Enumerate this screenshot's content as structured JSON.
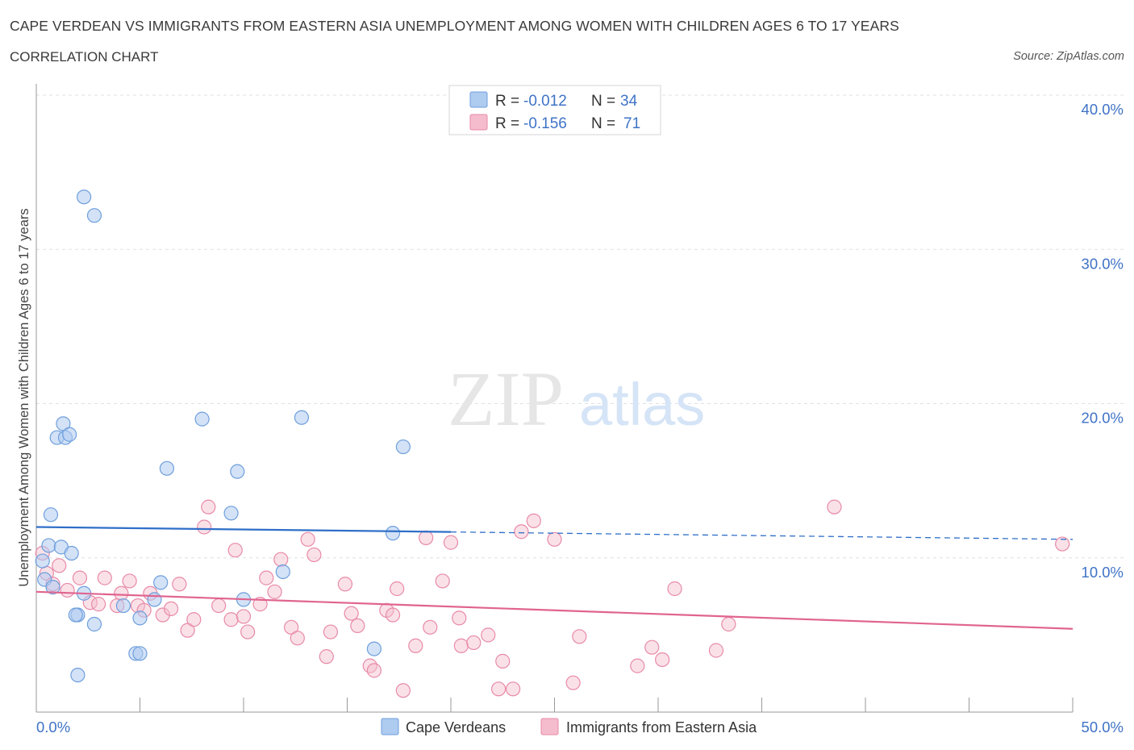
{
  "header": {
    "title": "CAPE VERDEAN VS IMMIGRANTS FROM EASTERN ASIA UNEMPLOYMENT AMONG WOMEN WITH CHILDREN AGES 6 TO 17 YEARS",
    "subtitle": "CORRELATION CHART",
    "source": "Source: ZipAtlas.com"
  },
  "watermark": {
    "zip": "ZIP",
    "atlas": "atlas"
  },
  "legend": {
    "rows": [
      {
        "r_label": "R = ",
        "r_value": "-0.012",
        "n_label": "N = ",
        "n_value": "34"
      },
      {
        "r_label": "R = ",
        "r_value": "-0.156",
        "n_label": "N = ",
        "n_value": "71"
      }
    ]
  },
  "colors": {
    "blue_fill": "#aecbf0",
    "blue_stroke": "#6f9fdc",
    "blue_line": "#2f6fc8",
    "pink_fill": "#f5bccd",
    "pink_stroke": "#e88aa8",
    "pink_line": "#e0648f",
    "accent_text": "#3f73c6"
  },
  "chart_data": {
    "type": "scatter",
    "title": "CAPE VERDEAN VS IMMIGRANTS FROM EASTERN ASIA UNEMPLOYMENT AMONG WOMEN WITH CHILDREN AGES 6 TO 17 YEARS",
    "ylabel": "Unemployment Among Women with Children Ages 6 to 17 years",
    "xlabel": "",
    "xlim": [
      0,
      50
    ],
    "ylim": [
      0,
      40
    ],
    "x_tick_labels": [
      "0.0%",
      "50.0%"
    ],
    "y_tick_labels": [
      "10.0%",
      "20.0%",
      "30.0%",
      "40.0%"
    ],
    "y_ticks": [
      10,
      20,
      30,
      40
    ],
    "grid": true,
    "legend_position": "bottom",
    "series": [
      {
        "name": "Cape Verdeans",
        "color": "#aecbf0",
        "points": [
          [
            2.3,
            33.4
          ],
          [
            2.8,
            32.2
          ],
          [
            0.7,
            12.8
          ],
          [
            1.3,
            18.7
          ],
          [
            1.0,
            17.8
          ],
          [
            1.4,
            17.8
          ],
          [
            1.6,
            18.0
          ],
          [
            0.6,
            10.8
          ],
          [
            1.2,
            10.7
          ],
          [
            1.7,
            10.3
          ],
          [
            0.3,
            9.8
          ],
          [
            0.4,
            8.6
          ],
          [
            0.8,
            8.1
          ],
          [
            2.3,
            7.7
          ],
          [
            2.0,
            6.3
          ],
          [
            2.8,
            5.7
          ],
          [
            1.9,
            6.3
          ],
          [
            4.2,
            6.9
          ],
          [
            5.0,
            6.1
          ],
          [
            5.7,
            7.3
          ],
          [
            6.0,
            8.4
          ],
          [
            4.8,
            3.8
          ],
          [
            5.0,
            3.8
          ],
          [
            2.0,
            2.4
          ],
          [
            6.3,
            15.8
          ],
          [
            8.0,
            19.0
          ],
          [
            9.4,
            12.9
          ],
          [
            9.7,
            15.6
          ],
          [
            12.8,
            19.1
          ],
          [
            10.0,
            7.3
          ],
          [
            11.9,
            9.1
          ],
          [
            17.7,
            17.2
          ],
          [
            17.2,
            11.6
          ],
          [
            16.3,
            4.1
          ]
        ],
        "trend": {
          "x": [
            0,
            50
          ],
          "y": [
            12.0,
            11.2
          ],
          "solid_until_x": 20
        }
      },
      {
        "name": "Immigrants from Eastern Asia",
        "color": "#f5bccd",
        "points": [
          [
            0.3,
            10.3
          ],
          [
            0.5,
            9.0
          ],
          [
            0.8,
            8.3
          ],
          [
            1.1,
            9.5
          ],
          [
            1.5,
            7.9
          ],
          [
            2.1,
            8.7
          ],
          [
            2.6,
            7.1
          ],
          [
            3.3,
            8.7
          ],
          [
            3.0,
            7.0
          ],
          [
            3.9,
            6.9
          ],
          [
            4.1,
            7.7
          ],
          [
            4.5,
            8.5
          ],
          [
            4.9,
            6.9
          ],
          [
            5.2,
            6.6
          ],
          [
            5.5,
            7.7
          ],
          [
            6.1,
            6.3
          ],
          [
            6.5,
            6.7
          ],
          [
            6.9,
            8.3
          ],
          [
            7.3,
            5.3
          ],
          [
            7.6,
            6.0
          ],
          [
            8.1,
            12.0
          ],
          [
            8.3,
            13.3
          ],
          [
            8.8,
            6.9
          ],
          [
            9.4,
            6.0
          ],
          [
            9.6,
            10.5
          ],
          [
            10.0,
            6.2
          ],
          [
            10.2,
            5.2
          ],
          [
            10.8,
            7.0
          ],
          [
            11.1,
            8.7
          ],
          [
            11.5,
            7.8
          ],
          [
            11.8,
            9.9
          ],
          [
            12.3,
            5.5
          ],
          [
            12.6,
            4.8
          ],
          [
            13.1,
            11.2
          ],
          [
            13.4,
            10.2
          ],
          [
            14.0,
            3.6
          ],
          [
            14.2,
            5.2
          ],
          [
            14.9,
            8.3
          ],
          [
            15.2,
            6.4
          ],
          [
            15.5,
            5.6
          ],
          [
            16.1,
            3.0
          ],
          [
            16.3,
            2.7
          ],
          [
            16.9,
            6.6
          ],
          [
            17.2,
            6.3
          ],
          [
            17.4,
            8.0
          ],
          [
            17.7,
            1.4
          ],
          [
            18.3,
            4.3
          ],
          [
            18.8,
            11.3
          ],
          [
            19.0,
            5.5
          ],
          [
            19.6,
            8.5
          ],
          [
            20.0,
            11.0
          ],
          [
            20.4,
            6.1
          ],
          [
            20.5,
            4.3
          ],
          [
            21.1,
            4.5
          ],
          [
            21.8,
            5.0
          ],
          [
            22.3,
            1.5
          ],
          [
            22.5,
            3.3
          ],
          [
            23.0,
            1.5
          ],
          [
            23.4,
            11.7
          ],
          [
            24.0,
            12.4
          ],
          [
            25.0,
            11.2
          ],
          [
            25.9,
            1.9
          ],
          [
            26.2,
            4.9
          ],
          [
            29.0,
            3.0
          ],
          [
            29.7,
            4.2
          ],
          [
            30.2,
            3.4
          ],
          [
            30.8,
            8.0
          ],
          [
            32.8,
            4.0
          ],
          [
            33.4,
            5.7
          ],
          [
            38.5,
            13.3
          ],
          [
            49.5,
            10.9
          ]
        ],
        "trend": {
          "x": [
            0,
            50
          ],
          "y": [
            7.8,
            5.4
          ]
        }
      }
    ]
  }
}
